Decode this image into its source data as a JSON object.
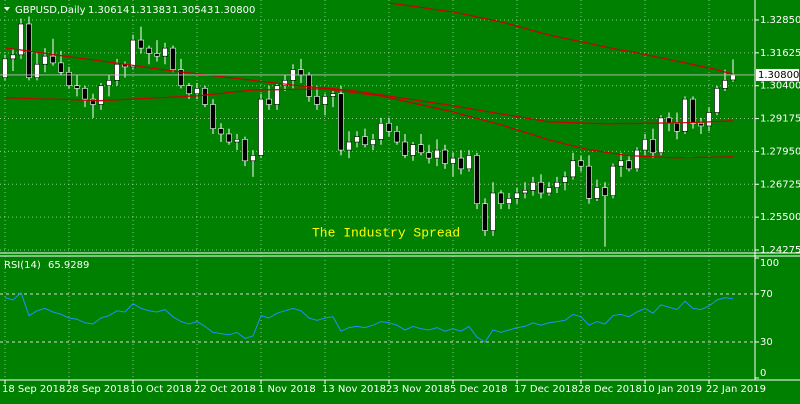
{
  "chart_data": [
    {
      "type": "candlestick",
      "title": "GBPUSD,Daily",
      "ohlc_labels": [
        "1.30614",
        "1.31383",
        "1.30543",
        "1.30800"
      ],
      "watermark": "The Industry Spread",
      "background": "#008000",
      "bull_color": "#ffffff",
      "bear_color": "#000000",
      "wick_color": "#ffffff",
      "grid": true,
      "categories": [
        "18 Sep 2018",
        null,
        null,
        null,
        null,
        null,
        null,
        null,
        "28 Sep 2018",
        null,
        null,
        null,
        null,
        null,
        null,
        null,
        "10 Oct 2018",
        null,
        null,
        null,
        null,
        null,
        null,
        null,
        "22 Oct 2018",
        null,
        null,
        null,
        null,
        null,
        null,
        null,
        "1 Nov 2018",
        null,
        null,
        null,
        null,
        null,
        null,
        null,
        "13 Nov 2018",
        null,
        null,
        null,
        null,
        null,
        null,
        null,
        "23 Nov 2018",
        null,
        null,
        null,
        null,
        null,
        null,
        null,
        "5 Dec 2018",
        null,
        null,
        null,
        null,
        null,
        null,
        null,
        "17 Dec 2018",
        null,
        null,
        null,
        null,
        null,
        null,
        null,
        "28 Dec 2018",
        null,
        null,
        null,
        null,
        null,
        null,
        null,
        "10 Jan 2019",
        null,
        null,
        null,
        null,
        null,
        null,
        null,
        "22 Jan 2019",
        null,
        null,
        null
      ],
      "candles": {
        "open": [
          1.307,
          1.314,
          1.3155,
          1.327,
          1.307,
          1.312,
          1.315,
          1.3125,
          1.309,
          1.304,
          1.303,
          1.299,
          1.297,
          1.304,
          1.306,
          1.312,
          1.311,
          1.321,
          1.318,
          1.316,
          1.315,
          1.318,
          1.31,
          1.304,
          1.301,
          1.303,
          1.297,
          1.288,
          1.286,
          1.283,
          1.284,
          1.276,
          1.278,
          1.299,
          1.297,
          1.304,
          1.306,
          1.31,
          1.308,
          1.3,
          1.297,
          1.3,
          1.301,
          1.28,
          1.283,
          1.285,
          1.282,
          1.284,
          1.29,
          1.287,
          1.283,
          1.278,
          1.282,
          1.279,
          1.277,
          1.28,
          1.275,
          1.277,
          1.273,
          1.278,
          1.26,
          1.25,
          1.264,
          1.26,
          1.262,
          1.264,
          1.265,
          1.268,
          1.264,
          1.266,
          1.268,
          1.27,
          1.276,
          1.274,
          1.262,
          1.266,
          1.263,
          1.274,
          1.276,
          1.273,
          1.28,
          1.284,
          1.279,
          1.292,
          1.29,
          1.287,
          1.299,
          1.29,
          1.289,
          1.294,
          1.303,
          1.30614
        ],
        "high": [
          1.3155,
          1.3175,
          1.329,
          1.3298,
          1.316,
          1.318,
          1.3215,
          1.317,
          1.311,
          1.308,
          1.304,
          1.301,
          1.305,
          1.308,
          1.314,
          1.313,
          1.323,
          1.326,
          1.319,
          1.321,
          1.32,
          1.319,
          1.314,
          1.305,
          1.305,
          1.304,
          1.299,
          1.29,
          1.288,
          1.286,
          1.285,
          1.28,
          1.301,
          1.304,
          1.305,
          1.308,
          1.312,
          1.314,
          1.309,
          1.304,
          1.301,
          1.302,
          1.304,
          1.287,
          1.287,
          1.288,
          1.286,
          1.292,
          1.292,
          1.289,
          1.286,
          1.283,
          1.286,
          1.282,
          1.284,
          1.282,
          1.279,
          1.28,
          1.28,
          1.279,
          1.262,
          1.268,
          1.265,
          1.264,
          1.266,
          1.268,
          1.27,
          1.271,
          1.268,
          1.27,
          1.272,
          1.279,
          1.278,
          1.278,
          1.269,
          1.268,
          1.275,
          1.279,
          1.278,
          1.281,
          1.286,
          1.288,
          1.293,
          1.294,
          1.294,
          1.3,
          1.3,
          1.292,
          1.296,
          1.304,
          1.31,
          1.31383
        ],
        "low": [
          1.306,
          1.3095,
          1.314,
          1.306,
          1.306,
          1.309,
          1.3115,
          1.308,
          1.303,
          1.3,
          1.296,
          1.292,
          1.295,
          1.3,
          1.304,
          1.307,
          1.31,
          1.316,
          1.312,
          1.313,
          1.312,
          1.309,
          1.303,
          1.299,
          1.299,
          1.296,
          1.286,
          1.283,
          1.282,
          1.28,
          1.274,
          1.27,
          1.277,
          1.295,
          1.295,
          1.302,
          1.303,
          1.305,
          1.298,
          1.295,
          1.293,
          1.296,
          1.278,
          1.277,
          1.281,
          1.281,
          1.28,
          1.282,
          1.285,
          1.282,
          1.277,
          1.276,
          1.278,
          1.275,
          1.274,
          1.273,
          1.27,
          1.271,
          1.272,
          1.258,
          1.248,
          1.248,
          1.258,
          1.258,
          1.26,
          1.262,
          1.263,
          1.262,
          1.263,
          1.264,
          1.265,
          1.269,
          1.272,
          1.26,
          1.261,
          1.244,
          1.262,
          1.27,
          1.272,
          1.272,
          1.278,
          1.277,
          1.278,
          1.287,
          1.284,
          1.286,
          1.288,
          1.286,
          1.287,
          1.293,
          1.302,
          1.30543
        ],
        "close": [
          1.314,
          1.3155,
          1.327,
          1.307,
          1.312,
          1.315,
          1.3125,
          1.309,
          1.304,
          1.303,
          1.299,
          1.297,
          1.304,
          1.306,
          1.312,
          1.311,
          1.321,
          1.318,
          1.316,
          1.315,
          1.318,
          1.31,
          1.304,
          1.301,
          1.303,
          1.297,
          1.288,
          1.286,
          1.283,
          1.284,
          1.276,
          1.278,
          1.299,
          1.297,
          1.304,
          1.306,
          1.31,
          1.308,
          1.3,
          1.297,
          1.3,
          1.301,
          1.28,
          1.283,
          1.285,
          1.282,
          1.284,
          1.29,
          1.287,
          1.283,
          1.278,
          1.282,
          1.279,
          1.277,
          1.28,
          1.275,
          1.277,
          1.273,
          1.278,
          1.26,
          1.25,
          1.264,
          1.26,
          1.262,
          1.264,
          1.265,
          1.268,
          1.264,
          1.266,
          1.268,
          1.27,
          1.276,
          1.274,
          1.262,
          1.266,
          1.263,
          1.274,
          1.276,
          1.273,
          1.28,
          1.284,
          1.279,
          1.292,
          1.29,
          1.287,
          1.299,
          1.29,
          1.289,
          1.294,
          1.303,
          1.306,
          1.308
        ]
      },
      "lines": [
        {
          "color": "#c80000",
          "values": [
            1.3181,
            1.3177,
            1.3173,
            1.3169,
            1.3165,
            1.3161,
            1.3156,
            1.3152,
            1.3148,
            1.3144,
            1.314,
            1.3136,
            1.3132,
            1.3128,
            1.3124,
            1.312,
            1.3116,
            1.3111,
            1.3107,
            1.3103,
            1.3099,
            1.3095,
            1.3091,
            1.3088,
            1.3084,
            1.3081,
            1.3077,
            1.3074,
            1.307,
            1.3067,
            1.3063,
            1.306,
            1.3056,
            1.3053,
            1.3049,
            1.3046,
            1.3042,
            1.3039,
            1.3036,
            1.3034,
            1.3031,
            1.3029,
            1.3026,
            1.3024,
            1.3019,
            1.3015,
            1.301,
            1.3006,
            1.3001,
            1.2997,
            1.2992,
            1.2988,
            1.2983,
            1.2979,
            1.2974,
            1.297,
            1.2965,
            1.296,
            1.2955,
            1.295,
            1.2945,
            1.294,
            1.2935,
            1.293,
            1.2925,
            1.292,
            1.2915,
            1.291,
            1.2905,
            1.2904,
            1.2903,
            1.2902,
            1.2901,
            1.29,
            1.2899,
            1.2898,
            1.2898,
            1.2899,
            1.2899,
            1.2899,
            1.29,
            1.29,
            1.2901,
            1.2901,
            1.2902,
            1.2902,
            1.2903,
            1.2904,
            1.2905,
            1.2906,
            1.2908,
            1.2909
          ]
        },
        {
          "color": "#c80000",
          "values": [
            1.2995,
            1.2994,
            1.2993,
            1.2992,
            1.2991,
            1.299,
            1.299,
            1.2989,
            1.2988,
            1.2987,
            1.2986,
            1.2985,
            1.2984,
            1.2986,
            1.2987,
            1.2989,
            1.299,
            1.2992,
            1.2993,
            1.2995,
            1.2996,
            1.2998,
            1.2999,
            1.3001,
            1.3002,
            1.3005,
            1.3008,
            1.3011,
            1.3015,
            1.3018,
            1.3021,
            1.3024,
            1.3024,
            1.3025,
            1.3025,
            1.3026,
            1.3026,
            1.3027,
            1.3027,
            1.3028,
            1.3028,
            1.3024,
            1.3021,
            1.3017,
            1.3013,
            1.3009,
            1.3006,
            1.3002,
            1.2995,
            1.2989,
            1.2982,
            1.2975,
            1.2969,
            1.2962,
            1.2955,
            1.2949,
            1.2942,
            1.2934,
            1.2926,
            1.2918,
            1.291,
            1.2902,
            1.2894,
            1.2885,
            1.2875,
            1.2866,
            1.2857,
            1.2847,
            1.2838,
            1.2831,
            1.2823,
            1.2816,
            1.2808,
            1.2801,
            1.2797,
            1.2792,
            1.2788,
            1.2783,
            1.2779,
            1.2778,
            1.2776,
            1.2775,
            1.2774,
            1.2772,
            1.2771,
            1.2772,
            1.2772,
            1.2773,
            1.2773,
            1.2774,
            1.2774,
            1.2775
          ]
        },
        {
          "color": "#c80000",
          "values": [
            null,
            null,
            null,
            null,
            null,
            null,
            null,
            null,
            null,
            null,
            null,
            null,
            null,
            null,
            null,
            null,
            null,
            null,
            null,
            null,
            null,
            null,
            null,
            null,
            null,
            null,
            null,
            null,
            null,
            null,
            null,
            null,
            null,
            null,
            null,
            null,
            null,
            null,
            null,
            null,
            null,
            null,
            null,
            null,
            null,
            null,
            null,
            null,
            1.3348,
            1.3344,
            1.334,
            1.3336,
            1.3332,
            1.3327,
            1.3323,
            1.3319,
            1.3315,
            1.3309,
            1.3303,
            1.3296,
            1.329,
            1.3284,
            1.3278,
            1.327,
            1.3262,
            1.3254,
            1.3245,
            1.3237,
            1.3229,
            1.3223,
            1.3216,
            1.321,
            1.3204,
            1.3198,
            1.3191,
            1.3185,
            1.3179,
            1.3173,
            1.3168,
            1.3162,
            1.3156,
            1.315,
            1.3144,
            1.3138,
            1.3131,
            1.3125,
            1.3119,
            1.3112,
            1.3106,
            1.3099,
            1.3091,
            1.3084
          ]
        }
      ],
      "ylim": [
        1.242,
        1.3352
      ],
      "yticks": [
        {
          "value": 1.3285,
          "label": "1.32850"
        },
        {
          "value": 1.31625,
          "label": "1.31625"
        },
        {
          "value": 1.304,
          "label": "1.30400"
        },
        {
          "value": 1.29175,
          "label": "1.29175"
        },
        {
          "value": 1.2795,
          "label": "1.27950"
        },
        {
          "value": 1.26725,
          "label": "1.26725"
        },
        {
          "value": 1.255,
          "label": "1.25500"
        },
        {
          "value": 1.24275,
          "label": "1.24275"
        }
      ]
    },
    {
      "type": "line",
      "title": "RSI(14)",
      "color": "#1e90ff",
      "values": [
        67,
        65,
        71,
        52,
        56,
        58,
        55,
        53,
        50,
        49,
        46,
        45,
        50,
        52,
        56,
        55,
        62,
        58,
        56,
        55,
        57,
        51,
        47,
        45,
        47,
        43,
        38,
        37,
        36,
        38,
        33,
        35,
        52,
        50,
        54,
        56,
        58,
        56,
        50,
        48,
        50,
        51,
        39,
        42,
        43,
        42,
        44,
        47,
        46,
        44,
        40,
        43,
        41,
        40,
        42,
        39,
        41,
        39,
        43,
        34,
        30,
        40,
        38,
        40,
        42,
        43,
        46,
        44,
        46,
        47,
        48,
        53,
        51,
        44,
        47,
        45,
        52,
        53,
        51,
        55,
        58,
        54,
        61,
        59,
        57,
        64,
        58,
        57,
        60,
        65,
        67,
        65.9289
      ],
      "ylim": [
        0,
        100
      ],
      "yticks": [
        100,
        70,
        30,
        0
      ]
    }
  ]
}
